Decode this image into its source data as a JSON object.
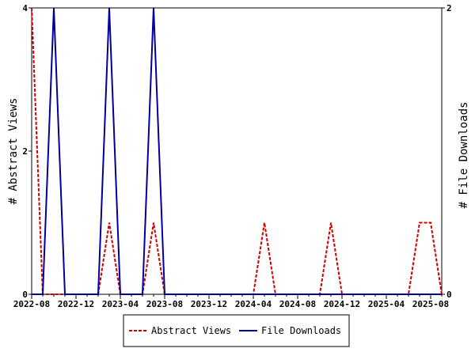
{
  "chart_data": {
    "type": "line",
    "x_tick_labels": [
      "2022-08",
      "2022-12",
      "2023-04",
      "2023-08",
      "2023-12",
      "2024-04",
      "2024-08",
      "2024-12",
      "2025-04",
      "2025-08"
    ],
    "x": [
      "2022-08",
      "2022-09",
      "2022-10",
      "2022-11",
      "2022-12",
      "2023-01",
      "2023-02",
      "2023-03",
      "2023-04",
      "2023-05",
      "2023-06",
      "2023-07",
      "2023-08",
      "2023-09",
      "2023-10",
      "2023-11",
      "2023-12",
      "2024-01",
      "2024-02",
      "2024-03",
      "2024-04",
      "2024-05",
      "2024-06",
      "2024-07",
      "2024-08",
      "2024-09",
      "2024-10",
      "2024-11",
      "2024-12",
      "2025-01",
      "2025-02",
      "2025-03",
      "2025-04",
      "2025-05",
      "2025-06",
      "2025-07",
      "2025-08",
      "2025-09"
    ],
    "series": [
      {
        "name": "Abstract Views",
        "axis": "left",
        "color": "#cc0000",
        "line_style": "dashed",
        "values": [
          4,
          0,
          0,
          0,
          0,
          0,
          0,
          1,
          0,
          0,
          0,
          1,
          0,
          0,
          0,
          0,
          0,
          0,
          0,
          0,
          0,
          1,
          0,
          0,
          0,
          0,
          0,
          1,
          0,
          0,
          0,
          0,
          0,
          0,
          0,
          1,
          1,
          0
        ]
      },
      {
        "name": "File Downloads",
        "axis": "right",
        "color": "#000099",
        "line_style": "solid",
        "values": [
          0,
          0,
          2,
          0,
          0,
          0,
          0,
          2,
          0,
          0,
          0,
          2,
          0,
          0,
          0,
          0,
          0,
          0,
          0,
          0,
          0,
          0,
          0,
          0,
          0,
          0,
          0,
          0,
          0,
          0,
          0,
          0,
          0,
          0,
          0,
          0,
          0,
          0
        ]
      }
    ],
    "y_left": {
      "label": "# Abstract Views",
      "ticks": [
        "0",
        "2",
        "4"
      ],
      "ylim": [
        0,
        4
      ]
    },
    "y_right": {
      "label": "# File Downloads",
      "ticks": [
        "0",
        "2"
      ],
      "ylim": [
        0,
        2
      ]
    },
    "legend_position": "bottom-center",
    "grid": false
  }
}
